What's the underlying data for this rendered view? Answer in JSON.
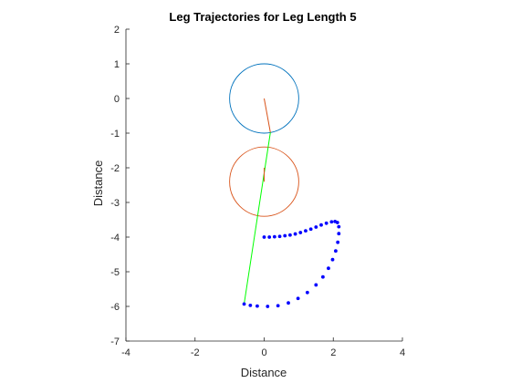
{
  "chart_data": {
    "type": "line",
    "title": "Leg Trajectories for Leg Length 5",
    "xlabel": "Distance",
    "ylabel": "Distance",
    "xlim": [
      -4,
      4
    ],
    "ylim": [
      -7,
      2
    ],
    "xticks": [
      "-4",
      "-2",
      "0",
      "2",
      "4"
    ],
    "yticks": [
      "2",
      "1",
      "0",
      "-1",
      "-2",
      "-3",
      "-4",
      "-5",
      "-6",
      "-7"
    ],
    "grid": false,
    "colors": {
      "circle_upper": "#0072BD",
      "circle_lower": "#D95319",
      "crank_link": "#D95319",
      "leg_link": "#00FF00",
      "trajectory": "#0000FF",
      "axes": "#262626"
    },
    "circles": [
      {
        "name": "upper",
        "cx": 0,
        "cy": 0,
        "r": 1
      },
      {
        "name": "lower",
        "cx": 0,
        "cy": -2.4,
        "r": 1
      }
    ],
    "links": [
      {
        "name": "crank",
        "points": [
          [
            0,
            0
          ],
          [
            0.18,
            -0.98
          ]
        ]
      },
      {
        "name": "leg",
        "points": [
          [
            0.18,
            -0.98
          ],
          [
            -0.58,
            -5.93
          ]
        ]
      },
      {
        "name": "lower-crank",
        "points": [
          [
            0,
            -2.0
          ],
          [
            0,
            -2.4
          ]
        ]
      }
    ],
    "trajectory": [
      [
        0.0,
        -4.0
      ],
      [
        0.15,
        -4.0
      ],
      [
        0.3,
        -3.99
      ],
      [
        0.45,
        -3.98
      ],
      [
        0.6,
        -3.96
      ],
      [
        0.75,
        -3.94
      ],
      [
        0.9,
        -3.91
      ],
      [
        1.05,
        -3.87
      ],
      [
        1.2,
        -3.82
      ],
      [
        1.35,
        -3.77
      ],
      [
        1.5,
        -3.71
      ],
      [
        1.65,
        -3.65
      ],
      [
        1.8,
        -3.6
      ],
      [
        1.95,
        -3.56
      ],
      [
        2.05,
        -3.55
      ],
      [
        2.12,
        -3.58
      ],
      [
        2.16,
        -3.7
      ],
      [
        2.16,
        -3.9
      ],
      [
        2.13,
        -4.15
      ],
      [
        2.07,
        -4.4
      ],
      [
        1.98,
        -4.65
      ],
      [
        1.86,
        -4.9
      ],
      [
        1.7,
        -5.15
      ],
      [
        1.5,
        -5.38
      ],
      [
        1.25,
        -5.6
      ],
      [
        0.98,
        -5.77
      ],
      [
        0.7,
        -5.9
      ],
      [
        0.4,
        -5.98
      ],
      [
        0.1,
        -6.0
      ],
      [
        -0.2,
        -5.99
      ],
      [
        -0.4,
        -5.97
      ],
      [
        -0.58,
        -5.93
      ]
    ]
  }
}
